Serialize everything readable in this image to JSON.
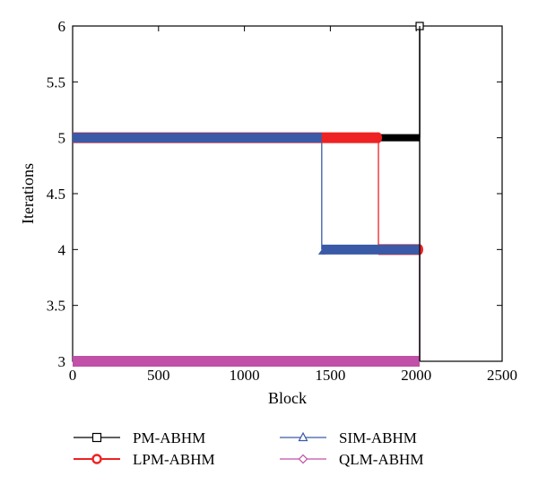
{
  "chart_data": {
    "type": "line",
    "xlabel": "Block",
    "ylabel": "Iterations",
    "xlim": [
      0,
      2500
    ],
    "ylim": [
      3,
      6
    ],
    "xticks": [
      0,
      500,
      1000,
      1500,
      2000,
      2500
    ],
    "yticks": [
      3,
      3.5,
      4,
      4.5,
      5,
      5.5,
      6
    ],
    "xtick_labels": [
      "0",
      "500",
      "1000",
      "1500",
      "2000",
      "2500"
    ],
    "ytick_labels": [
      "3",
      "3.5",
      "4",
      "4.5",
      "5",
      "5.5",
      "6"
    ],
    "grid": false,
    "legend_position": "bottom",
    "series": [
      {
        "name": "PM-ABHM",
        "color": "#000000",
        "marker": "square",
        "x": [
          0,
          2020,
          2020,
          2020
        ],
        "y": [
          5,
          5,
          6,
          3
        ]
      },
      {
        "name": "LPM-ABHM",
        "color": "#ee2222",
        "marker": "circle",
        "x": [
          0,
          1780,
          1780,
          2020,
          2020
        ],
        "y": [
          5,
          5,
          4,
          4,
          3
        ]
      },
      {
        "name": "SIM-ABHM",
        "color": "#3a5aa8",
        "marker": "triangle",
        "x": [
          0,
          1450,
          1450,
          2020,
          2020
        ],
        "y": [
          5,
          5,
          4,
          4,
          3
        ]
      },
      {
        "name": "QLM-ABHM",
        "color": "#c050a8",
        "marker": "diamond",
        "x": [
          0,
          2020
        ],
        "y": [
          3,
          3
        ]
      }
    ]
  }
}
